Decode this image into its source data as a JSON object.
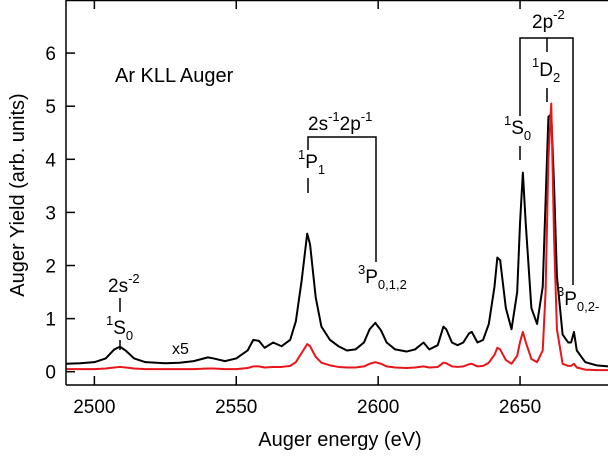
{
  "chart_data": {
    "type": "line",
    "xlabel": "Auger energy (eV)",
    "ylabel": "Auger Yield (arb. units)",
    "x": [
      2490,
      2495,
      2500,
      2504,
      2507,
      2509,
      2511,
      2514,
      2518,
      2525,
      2530,
      2535,
      2540,
      2542,
      2546,
      2550,
      2554,
      2556,
      2558,
      2560,
      2563,
      2566,
      2569,
      2571,
      2573,
      2575,
      2576,
      2578,
      2580,
      2583,
      2586,
      2589,
      2592,
      2595,
      2597,
      2599,
      2601,
      2603,
      2606,
      2610,
      2613,
      2616,
      2618,
      2621,
      2623,
      2624,
      2626,
      2628,
      2630,
      2632,
      2633,
      2635,
      2637,
      2639,
      2641,
      2642,
      2643,
      2645,
      2647,
      2649,
      2650,
      2651,
      2652,
      2654,
      2656,
      2658,
      2659,
      2660,
      2661,
      2662,
      2663,
      2665,
      2667,
      2668,
      2669,
      2670,
      2673,
      2677,
      2681
    ],
    "series": [
      {
        "color": "#000000",
        "values": [
          0.15,
          0.16,
          0.18,
          0.25,
          0.42,
          0.47,
          0.4,
          0.25,
          0.18,
          0.16,
          0.17,
          0.2,
          0.27,
          0.25,
          0.2,
          0.25,
          0.4,
          0.6,
          0.58,
          0.45,
          0.55,
          0.48,
          0.6,
          0.95,
          1.7,
          2.6,
          2.4,
          1.4,
          0.85,
          0.6,
          0.48,
          0.4,
          0.42,
          0.55,
          0.8,
          0.92,
          0.78,
          0.55,
          0.42,
          0.38,
          0.42,
          0.55,
          0.42,
          0.5,
          0.85,
          0.8,
          0.55,
          0.5,
          0.55,
          0.72,
          0.75,
          0.55,
          0.6,
          0.9,
          1.6,
          2.15,
          2.1,
          1.2,
          0.8,
          1.5,
          2.8,
          3.75,
          2.8,
          1.2,
          0.9,
          1.6,
          3.2,
          4.8,
          4.85,
          3.5,
          1.8,
          0.7,
          0.55,
          0.55,
          0.75,
          0.4,
          0.18,
          0.12,
          0.1
        ]
      },
      {
        "color": "#e8151b",
        "values": [
          0.05,
          0.05,
          0.05,
          0.06,
          0.08,
          0.09,
          0.08,
          0.06,
          0.05,
          0.05,
          0.05,
          0.05,
          0.06,
          0.06,
          0.05,
          0.05,
          0.07,
          0.1,
          0.1,
          0.08,
          0.09,
          0.09,
          0.11,
          0.18,
          0.35,
          0.52,
          0.48,
          0.28,
          0.17,
          0.12,
          0.09,
          0.08,
          0.08,
          0.1,
          0.15,
          0.18,
          0.15,
          0.1,
          0.08,
          0.07,
          0.08,
          0.1,
          0.08,
          0.09,
          0.17,
          0.16,
          0.1,
          0.09,
          0.1,
          0.14,
          0.15,
          0.1,
          0.11,
          0.17,
          0.32,
          0.45,
          0.42,
          0.22,
          0.15,
          0.3,
          0.56,
          0.75,
          0.56,
          0.24,
          0.18,
          0.4,
          1.5,
          4.0,
          5.05,
          2.5,
          0.8,
          0.15,
          0.11,
          0.11,
          0.15,
          0.08,
          0.04,
          0.03,
          0.03
        ]
      }
    ],
    "xlim": [
      2490,
      2681
    ],
    "ylim": [
      -0.25,
      7.0
    ],
    "xticks": [
      2500,
      2550,
      2600,
      2650
    ],
    "yticks": [
      0,
      1,
      2,
      3,
      4,
      5,
      6
    ],
    "annotations": [
      {
        "parts": [
          "Ar KLL Auger"
        ]
      },
      {
        "parts": [
          "x5"
        ]
      },
      {
        "parts": [
          "2s",
          "-2"
        ]
      },
      {
        "parts": [
          "1",
          "S",
          "0"
        ]
      },
      {
        "parts": [
          "2s",
          "-1",
          "2p",
          "-1"
        ]
      },
      {
        "parts": [
          "1",
          "P",
          "1"
        ]
      },
      {
        "parts": [
          "3",
          "P",
          "0,1,2"
        ]
      },
      {
        "parts": [
          "2p",
          "-2"
        ]
      },
      {
        "parts": [
          "1",
          "D",
          "2"
        ]
      },
      {
        "parts": [
          "1",
          "S",
          "0"
        ]
      },
      {
        "parts": [
          "3",
          "P",
          "0,2-"
        ]
      }
    ]
  }
}
